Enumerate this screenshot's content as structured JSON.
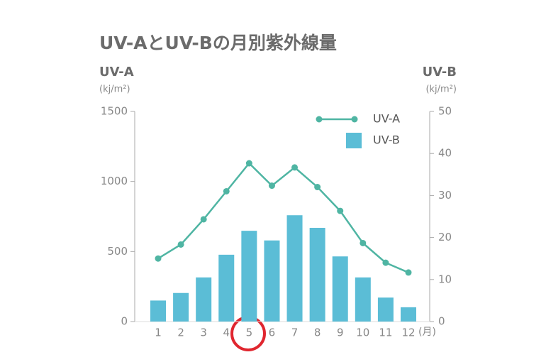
{
  "chart_data": {
    "type": "bar-line",
    "title": "UV-AとUV-Bの月別紫外線量",
    "y_label": "UV-A",
    "y_unit": "(kj/m²)",
    "y2_label": "UV-B",
    "y2_unit": "(kj/m²)",
    "x_unit": "(月)",
    "categories": [
      "1",
      "2",
      "3",
      "4",
      "5",
      "6",
      "7",
      "8",
      "9",
      "10",
      "11",
      "12"
    ],
    "ylim": [
      0,
      1500
    ],
    "yticks": [
      0,
      500,
      1000,
      1500
    ],
    "y2lim": [
      0,
      50
    ],
    "y2ticks": [
      0,
      10,
      20,
      30,
      40,
      50
    ],
    "legend": "top-right",
    "series": [
      {
        "name": "UV-A",
        "type": "line",
        "color": "#4fb5a3",
        "values": [
          450,
          550,
          730,
          930,
          1130,
          970,
          1100,
          960,
          790,
          560,
          420,
          350
        ]
      },
      {
        "name": "UV-B",
        "type": "bar",
        "axis": "y2",
        "color": "#5bbdd6",
        "values": [
          5,
          6.8,
          10.5,
          15.9,
          21.6,
          19.3,
          25.3,
          22.3,
          15.5,
          10.5,
          5.7,
          3.4
        ]
      }
    ]
  }
}
